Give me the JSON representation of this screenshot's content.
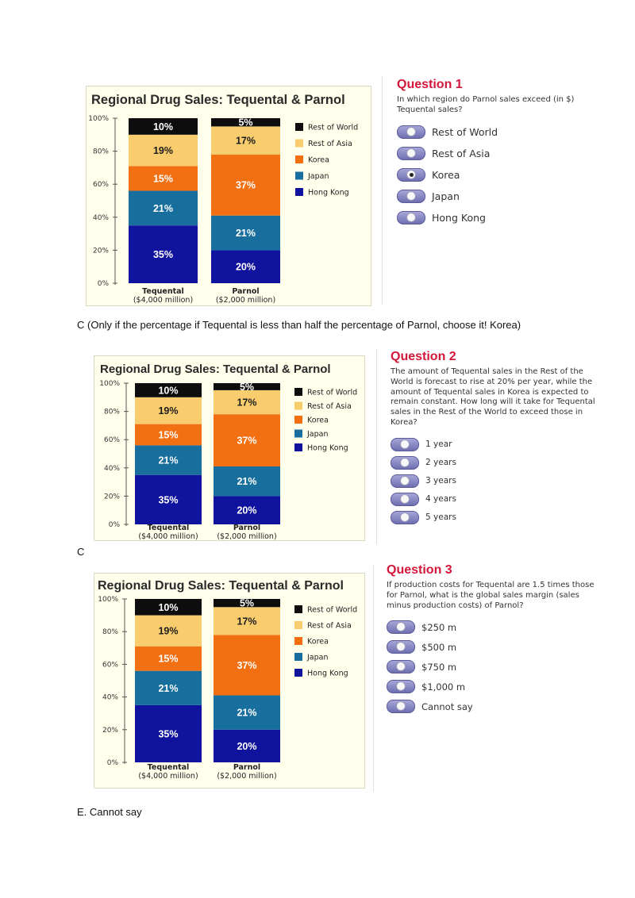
{
  "colors": {
    "rest_of_world": "#0d0d0d",
    "rest_of_asia": "#f9cd6e",
    "korea": "#f26f12",
    "japan": "#186f9d",
    "hong_kong": "#10139e",
    "question_title": "#d2173a"
  },
  "chart_data": [
    {
      "type": "bar",
      "stacked": true,
      "title": "Regional Drug Sales: Tequental & Parnol",
      "categories": [
        "Tequental",
        "Parnol"
      ],
      "category_sublabels": [
        "($4,000 million)",
        "($2,000 million)"
      ],
      "yticks": [
        "0%",
        "20%",
        "40%",
        "60%",
        "80%",
        "100%"
      ],
      "ylim": [
        0,
        100
      ],
      "legend_position": "right",
      "series": [
        {
          "name": "Hong Kong",
          "values": [
            35,
            20
          ],
          "labels": [
            "35%",
            "20%"
          ]
        },
        {
          "name": "Japan",
          "values": [
            21,
            21
          ],
          "labels": [
            "21%",
            "21%"
          ]
        },
        {
          "name": "Korea",
          "values": [
            15,
            37
          ],
          "labels": [
            "15%",
            "37%"
          ]
        },
        {
          "name": "Rest of Asia",
          "values": [
            19,
            17
          ],
          "labels": [
            "19%",
            "17%"
          ]
        },
        {
          "name": "Rest of World",
          "values": [
            10,
            5
          ],
          "labels": [
            "10%",
            "5%"
          ]
        }
      ],
      "legend_order": [
        "Rest of World",
        "Rest of Asia",
        "Korea",
        "Japan",
        "Hong Kong"
      ]
    },
    {
      "type": "bar",
      "stacked": true,
      "title": "Regional Drug Sales: Tequental & Parnol",
      "categories": [
        "Tequental",
        "Parnol"
      ],
      "category_sublabels": [
        "($4,000 million)",
        "($2,000 million)"
      ],
      "yticks": [
        "0%",
        "20%",
        "40%",
        "60%",
        "80%",
        "100%"
      ],
      "ylim": [
        0,
        100
      ],
      "legend_position": "right",
      "series": [
        {
          "name": "Hong Kong",
          "values": [
            35,
            20
          ],
          "labels": [
            "35%",
            "20%"
          ]
        },
        {
          "name": "Japan",
          "values": [
            21,
            21
          ],
          "labels": [
            "21%",
            "21%"
          ]
        },
        {
          "name": "Korea",
          "values": [
            15,
            37
          ],
          "labels": [
            "15%",
            "37%"
          ]
        },
        {
          "name": "Rest of Asia",
          "values": [
            19,
            17
          ],
          "labels": [
            "19%",
            "17%"
          ]
        },
        {
          "name": "Rest of World",
          "values": [
            10,
            5
          ],
          "labels": [
            "10%",
            "5%"
          ]
        }
      ],
      "legend_order": [
        "Rest of World",
        "Rest of Asia",
        "Korea",
        "Japan",
        "Hong Kong"
      ]
    },
    {
      "type": "bar",
      "stacked": true,
      "title": "Regional Drug Sales: Tequental & Parnol",
      "categories": [
        "Tequental",
        "Parnol"
      ],
      "category_sublabels": [
        "($4,000 million)",
        "($2,000 million)"
      ],
      "yticks": [
        "0%",
        "20%",
        "40%",
        "60%",
        "80%",
        "100%"
      ],
      "ylim": [
        0,
        100
      ],
      "legend_position": "right",
      "series": [
        {
          "name": "Hong Kong",
          "values": [
            35,
            20
          ],
          "labels": [
            "35%",
            "20%"
          ]
        },
        {
          "name": "Japan",
          "values": [
            21,
            21
          ],
          "labels": [
            "21%",
            "21%"
          ]
        },
        {
          "name": "Korea",
          "values": [
            15,
            37
          ],
          "labels": [
            "15%",
            "37%"
          ]
        },
        {
          "name": "Rest of Asia",
          "values": [
            19,
            17
          ],
          "labels": [
            "19%",
            "17%"
          ]
        },
        {
          "name": "Rest of World",
          "values": [
            10,
            5
          ],
          "labels": [
            "10%",
            "5%"
          ]
        }
      ],
      "legend_order": [
        "Rest of World",
        "Rest of Asia",
        "Korea",
        "Japan",
        "Hong Kong"
      ]
    }
  ],
  "questions": [
    {
      "title": "Question 1",
      "text": "In which region do Parnol sales exceed (in $) Tequental sales?",
      "options": [
        "Rest of World",
        "Rest of Asia",
        "Korea",
        "Japan",
        "Hong Kong"
      ],
      "selected_index": 2,
      "answer_note": "C (Only if the percentage if Tequental is less than half the percentage of Parnol, choose it! Korea)"
    },
    {
      "title": "Question 2",
      "text": "The amount of Tequental sales in the Rest of the World is forecast to rise at 20% per year, while the amount of Tequental sales in Korea is expected to remain constant. How long will it take for Tequental sales in the Rest of the World to exceed those in Korea?",
      "options": [
        "1 year",
        "2 years",
        "3 years",
        "4 years",
        "5 years"
      ],
      "selected_index": -1,
      "answer_note": "C"
    },
    {
      "title": "Question 3",
      "text": "If production costs for Tequental are 1.5 times those for Parnol, what is the global sales margin (sales minus production costs) of Parnol?",
      "options": [
        "$250 m",
        "$500 m",
        "$750 m",
        "$1,000 m",
        "Cannot say"
      ],
      "selected_index": -1,
      "answer_note": "E. Cannot say"
    }
  ]
}
